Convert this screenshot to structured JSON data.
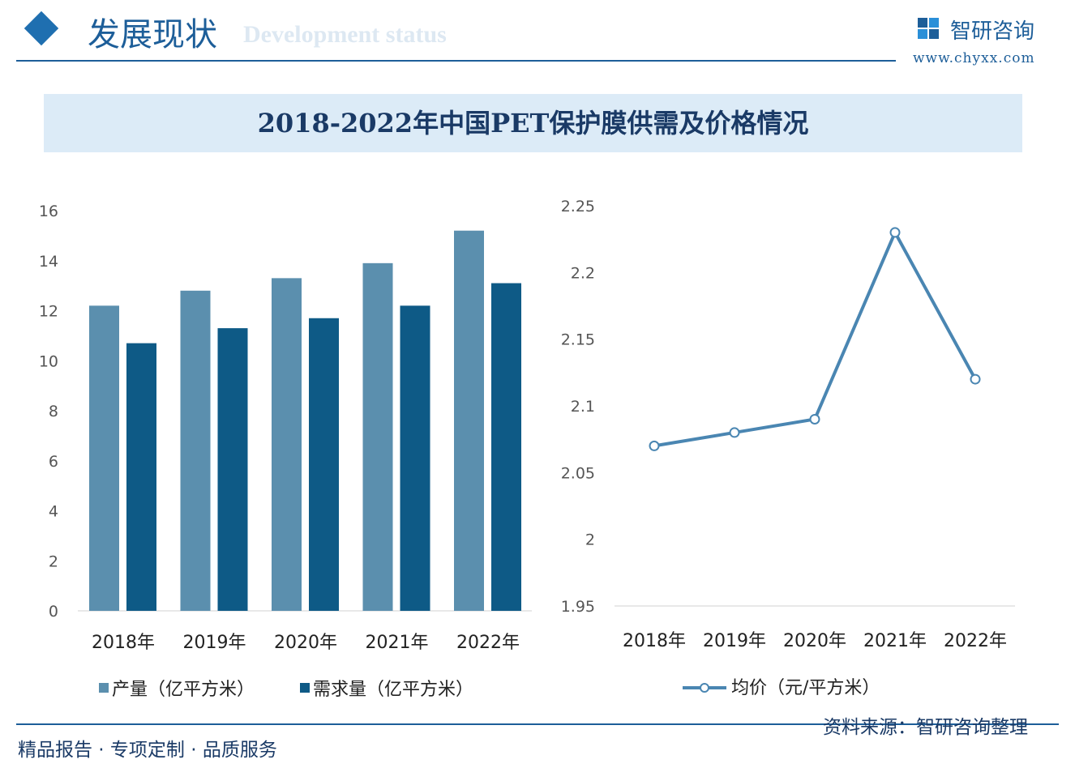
{
  "header": {
    "title": "发展现状",
    "subtitle": "Development status",
    "logo_text": "智研咨询",
    "url": "www.chyxx.com"
  },
  "footer": {
    "left": "精品报告 · 专项定制 · 品质服务",
    "source": "资料来源：智研咨询整理"
  },
  "colors": {
    "production": "#5b8fae",
    "demand": "#0e5a86",
    "price": "#4a86b2",
    "accent": "#1d5e99"
  },
  "chart_title": "2018-2022年中国PET保护膜供需及价格情况",
  "chart_data": [
    {
      "type": "bar",
      "categories": [
        "2018年",
        "2019年",
        "2020年",
        "2021年",
        "2022年"
      ],
      "series": [
        {
          "name": "产量（亿平方米）",
          "values": [
            12.2,
            12.8,
            13.3,
            13.9,
            15.2
          ]
        },
        {
          "name": "需求量（亿平方米）",
          "values": [
            10.7,
            11.3,
            11.7,
            12.2,
            13.1
          ]
        }
      ],
      "ylim": [
        0,
        16
      ],
      "yticks": [
        "0",
        "2",
        "4",
        "6",
        "8",
        "10",
        "12",
        "14",
        "16"
      ],
      "grid": false,
      "legend": "bottom"
    },
    {
      "type": "line",
      "categories": [
        "2018年",
        "2019年",
        "2020年",
        "2021年",
        "2022年"
      ],
      "series": [
        {
          "name": "均价（元/平方米）",
          "values": [
            2.07,
            2.08,
            2.09,
            2.23,
            2.12
          ]
        }
      ],
      "ylim": [
        1.95,
        2.25
      ],
      "yticks": [
        "1.95",
        "2",
        "2.05",
        "2.1",
        "2.15",
        "2.2",
        "2.25"
      ],
      "grid": false,
      "legend": "bottom"
    }
  ]
}
